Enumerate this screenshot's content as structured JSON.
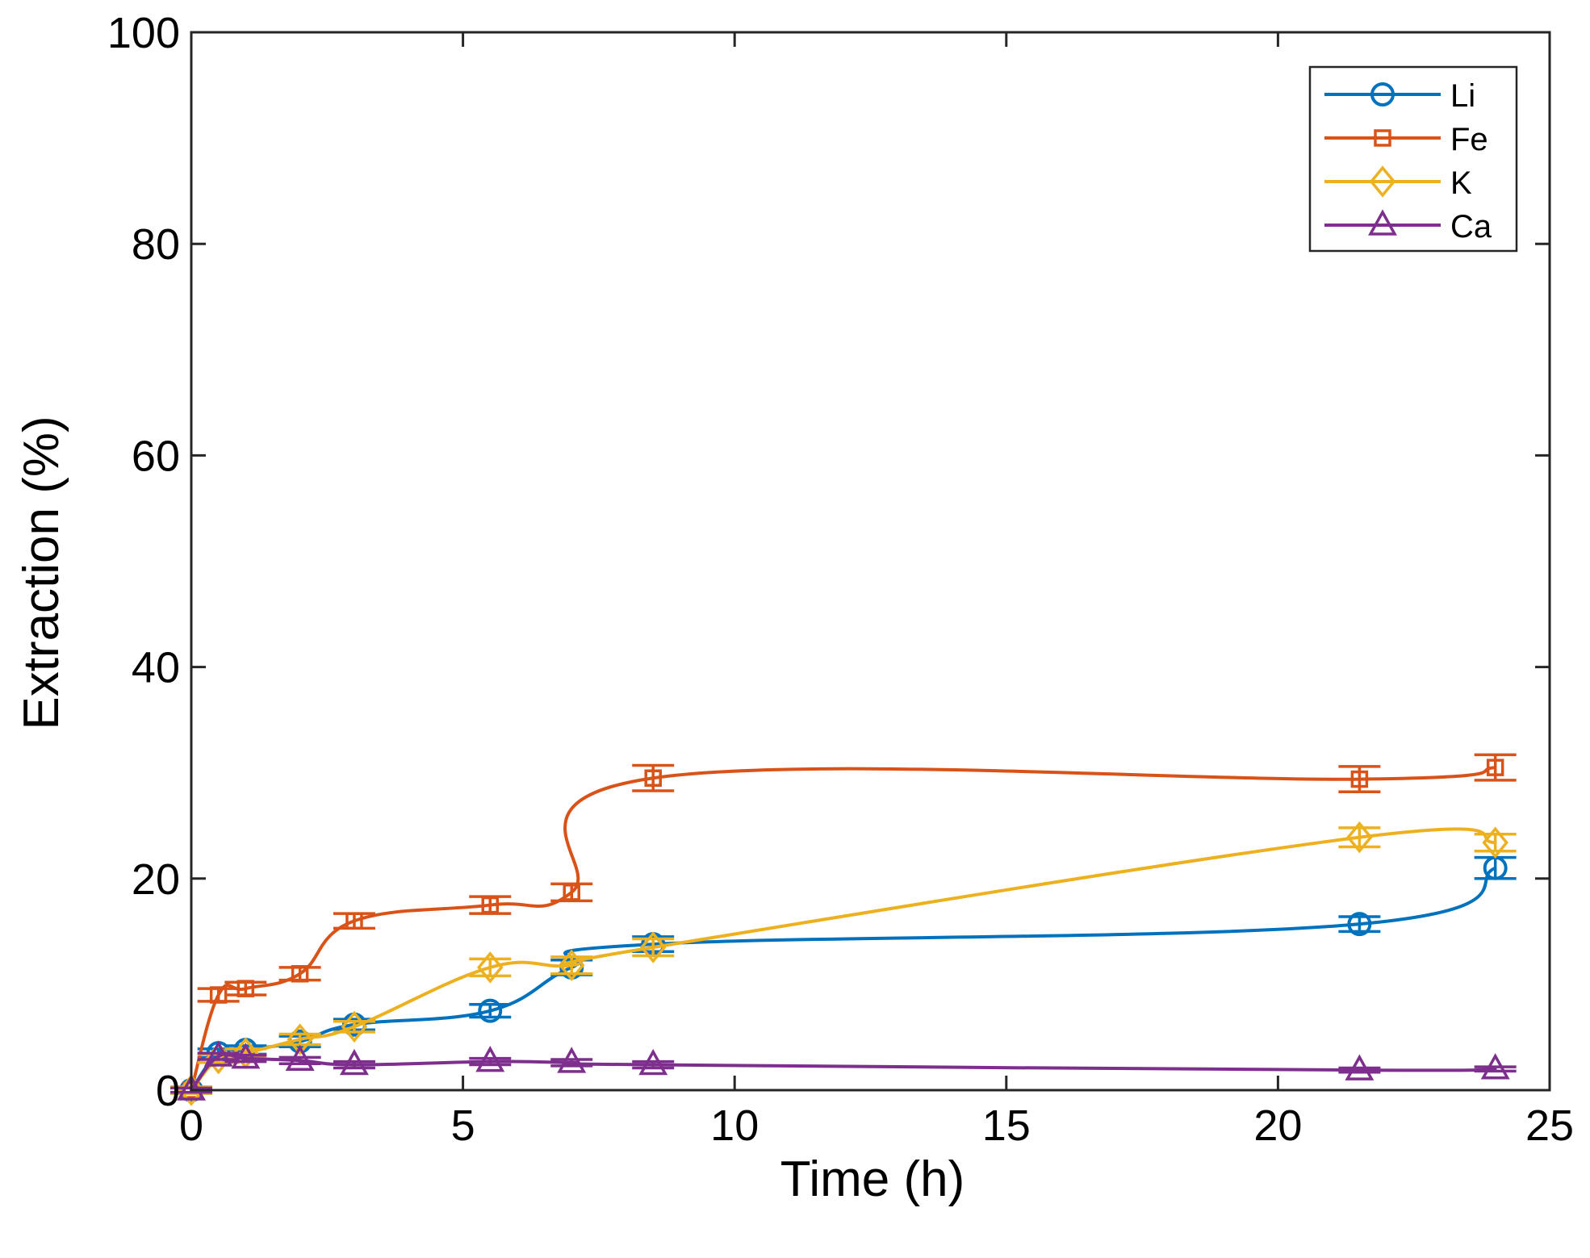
{
  "chart_data": {
    "type": "line",
    "title": "",
    "xlabel": "Time (h)",
    "ylabel": "Extraction (%)",
    "xlim": [
      0,
      25
    ],
    "ylim": [
      0,
      100
    ],
    "xticks": [
      0,
      5,
      10,
      15,
      20,
      25
    ],
    "yticks": [
      0,
      20,
      40,
      60,
      80,
      100
    ],
    "grid": false,
    "legend_position": "top-right",
    "series": [
      {
        "name": "Li",
        "color": "#0072BD",
        "marker": "circle",
        "x": [
          0,
          0.5,
          1,
          2,
          3,
          5.5,
          7,
          8.5,
          21.5,
          24
        ],
        "y": [
          0,
          3.5,
          3.8,
          4.6,
          6.2,
          7.5,
          11.6,
          13.8,
          15.7,
          21.0
        ],
        "err": [
          0.3,
          0.4,
          0.4,
          0.5,
          0.5,
          0.6,
          0.7,
          0.7,
          0.7,
          1.0
        ]
      },
      {
        "name": "Fe",
        "color": "#D95319",
        "marker": "square",
        "x": [
          0,
          0.5,
          1,
          2,
          3,
          5.5,
          7,
          8.5,
          21.5,
          24
        ],
        "y": [
          0,
          9.0,
          9.6,
          11.0,
          16.0,
          17.5,
          18.7,
          29.5,
          29.4,
          30.5
        ],
        "err": [
          0.3,
          0.6,
          0.6,
          0.6,
          0.7,
          0.8,
          0.8,
          1.2,
          1.2,
          1.2
        ]
      },
      {
        "name": "K",
        "color": "#EDB120",
        "marker": "diamond",
        "x": [
          0,
          0.5,
          1,
          2,
          3,
          5.5,
          7,
          8.5,
          21.5,
          24
        ],
        "y": [
          0,
          3.0,
          3.5,
          4.8,
          6.0,
          11.6,
          11.8,
          13.5,
          23.9,
          23.4
        ],
        "err": [
          0.3,
          0.4,
          0.4,
          0.5,
          0.5,
          0.8,
          0.8,
          0.8,
          0.9,
          0.8
        ]
      },
      {
        "name": "Ca",
        "color": "#7E2F8E",
        "marker": "triangle",
        "x": [
          0,
          0.5,
          1,
          2,
          3,
          5.5,
          7,
          8.5,
          21.5,
          24
        ],
        "y": [
          0,
          3.2,
          3.0,
          2.8,
          2.4,
          2.7,
          2.6,
          2.4,
          1.9,
          2.0
        ],
        "err": [
          0.2,
          0.3,
          0.3,
          0.3,
          0.3,
          0.3,
          0.3,
          0.3,
          0.2,
          0.2
        ]
      }
    ]
  }
}
